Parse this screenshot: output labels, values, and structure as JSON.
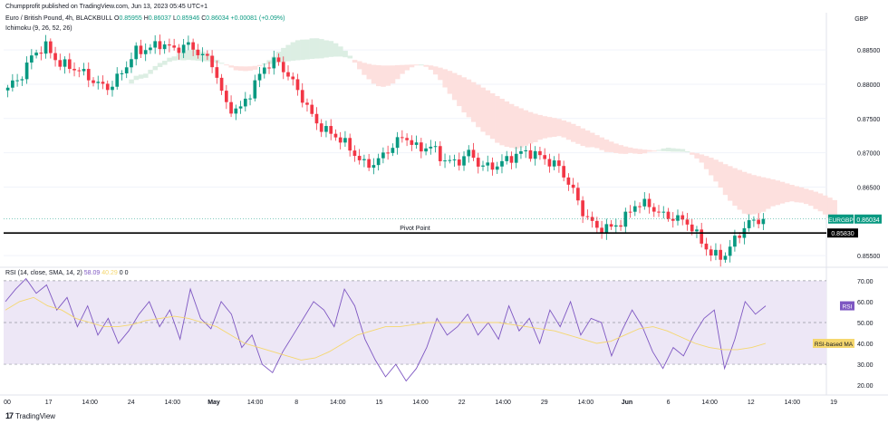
{
  "header": {
    "published": "Chumpprofit published on TradingView.com, Jun 13, 2023 05:45 UTC+1",
    "symbol": "Euro / British Pound, 4h, BLACKBULL",
    "o_label": "O",
    "o": "0.85955",
    "h_label": "H",
    "h": "0.86037",
    "l_label": "L",
    "l": "0.85946",
    "c_label": "C",
    "c": "0.86034",
    "change": "+0.00081 (+0.09%)",
    "ichimoku": "Ichimoku (9, 26, 52, 26)",
    "currency": "GBP"
  },
  "rsi_header": {
    "label": "RSI (14, close, SMA, 14, 2)",
    "rsi_value": "58.09",
    "ma_value": "40.29",
    "extra": "0  0"
  },
  "brand": {
    "logo": "17",
    "name": "TradingView"
  },
  "colors": {
    "up": "#089981",
    "down": "#f23645",
    "cloud_bull": "#dceee3",
    "cloud_bear": "#fde0de",
    "rsi_line": "#7e57c2",
    "rsi_ma": "#f5d76e",
    "rsi_band": "#ede7f6",
    "pivot": "#000000",
    "price_tag": "#089981"
  },
  "chart_data": [
    {
      "type": "candlestick",
      "title": "Euro / British Pound, 4h, BLACKBULL",
      "ylim": [
        0.8537,
        0.887
      ],
      "y_ticks": [
        "0.88500",
        "0.88000",
        "0.87500",
        "0.87000",
        "0.86500",
        "0.85500"
      ],
      "x_ticks": [
        "00",
        "17",
        "14:00",
        "24",
        "14:00",
        "May",
        "14:00",
        "8",
        "14:00",
        "15",
        "14:00",
        "22",
        "14:00",
        "29",
        "14:00",
        "Jun",
        "6",
        "14:00",
        "12",
        "14:00",
        "19"
      ],
      "price_label": {
        "symbol": "EURGBP",
        "value": "0.86034"
      },
      "pivot": {
        "label": "Pivot Point",
        "value": 0.8583,
        "value_label": "0.85830"
      },
      "close_path": [
        0.8795,
        0.881,
        0.8845,
        0.8855,
        0.883,
        0.8825,
        0.8815,
        0.88,
        0.8795,
        0.882,
        0.8848,
        0.8852,
        0.886,
        0.885,
        0.8858,
        0.8845,
        0.883,
        0.877,
        0.876,
        0.879,
        0.8825,
        0.8835,
        0.881,
        0.878,
        0.8745,
        0.873,
        0.872,
        0.87,
        0.868,
        0.869,
        0.871,
        0.8725,
        0.8705,
        0.871,
        0.869,
        0.8685,
        0.87,
        0.868,
        0.868,
        0.869,
        0.87,
        0.87,
        0.869,
        0.868,
        0.865,
        0.861,
        0.859,
        0.859,
        0.86,
        0.8625,
        0.8625,
        0.861,
        0.8605,
        0.86,
        0.8575,
        0.855,
        0.855,
        0.858,
        0.86,
        0.8603
      ],
      "close_points": 160
    },
    {
      "type": "line",
      "title": "RSI (14, close, SMA, 14, 2)",
      "ylim": [
        17,
        73
      ],
      "y_ticks": [
        "70.00",
        "60.00",
        "50.00",
        "40.00",
        "30.00",
        "20.00"
      ],
      "bands": {
        "upper": 70,
        "middle": 50,
        "lower": 30
      },
      "labels": {
        "rsi": "RSI",
        "ma": "RSI-based MA"
      },
      "series": [
        {
          "values": [
            60,
            66,
            71,
            64,
            68,
            56,
            62,
            48,
            58,
            44,
            52,
            40,
            46,
            54,
            60,
            48,
            56,
            42,
            66,
            52,
            47,
            60,
            54,
            38,
            44,
            30,
            26,
            36,
            44,
            52,
            60,
            56,
            48,
            66,
            58,
            42,
            32,
            24,
            30,
            22,
            28,
            38,
            52,
            44,
            48,
            54,
            44,
            50,
            42,
            58,
            46,
            52,
            40,
            56,
            48,
            60,
            44,
            52,
            50,
            34,
            46,
            56,
            48,
            36,
            28,
            38,
            34,
            44,
            52,
            56,
            28,
            42,
            60,
            54,
            58
          ]
        },
        {
          "values": [
            56,
            60,
            62,
            58,
            56,
            52,
            50,
            48,
            48,
            49,
            51,
            52,
            53,
            52,
            50,
            48,
            44,
            40,
            38,
            36,
            34,
            32,
            33,
            36,
            40,
            44,
            46,
            48,
            48,
            49,
            50,
            50,
            50,
            50,
            50,
            50,
            49,
            48,
            47,
            46,
            44,
            42,
            40,
            41,
            44,
            47,
            48,
            46,
            43,
            40,
            38,
            37,
            37,
            38,
            40
          ]
        }
      ]
    }
  ]
}
